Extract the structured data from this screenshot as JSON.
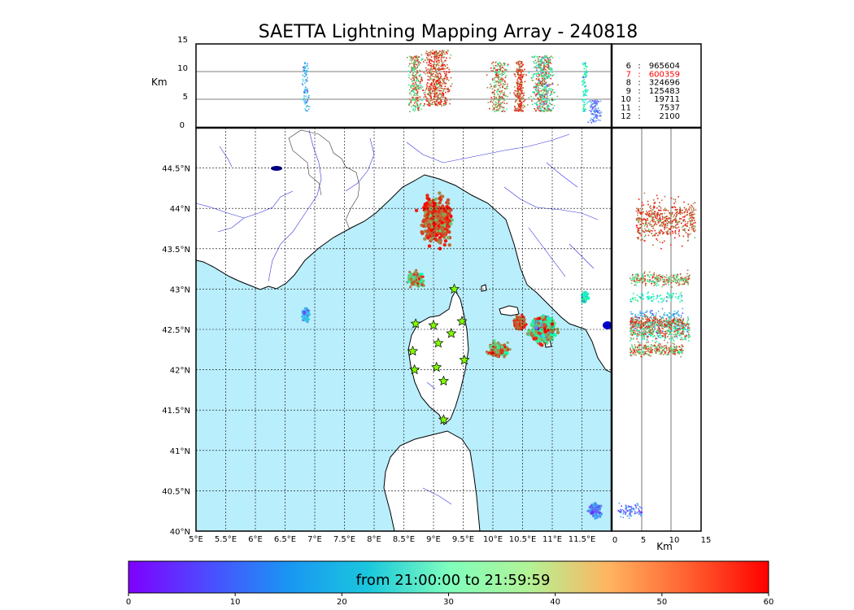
{
  "title": "SAETTA Lightning Mapping Array - 240818",
  "altitude_panel": {
    "ylabel": "Km",
    "yticks": [
      "15",
      "10",
      "5",
      "0"
    ],
    "gridlines_km": [
      5,
      10
    ]
  },
  "side_panel": {
    "xlabel": "Km",
    "xticks": [
      "0",
      "5",
      "10",
      "15"
    ]
  },
  "map": {
    "lon_range": [
      5,
      12
    ],
    "lat_range": [
      40,
      45
    ],
    "lon_ticks": [
      "5°E",
      "5.5°E",
      "6°E",
      "6.5°E",
      "7°E",
      "7.5°E",
      "8°E",
      "8.5°E",
      "9°E",
      "9.5°E",
      "10°E",
      "10.5°E",
      "11°E",
      "11.5°E"
    ],
    "lat_ticks": [
      "40°N",
      "40.5°N",
      "41°N",
      "41.5°N",
      "42°N",
      "42.5°N",
      "43°N",
      "43.5°N",
      "44°N",
      "44.5°N"
    ],
    "sea_color": "#b9eefc",
    "land_color": "#ffffff",
    "river_color": "#3333dd",
    "station_color": "#7fff00"
  },
  "station_counts": [
    {
      "stations": "6",
      "sep": ":",
      "count": "965604",
      "color": "#000000"
    },
    {
      "stations": "7",
      "sep": ":",
      "count": "600359",
      "color": "#ff0000"
    },
    {
      "stations": "8",
      "sep": ":",
      "count": "324696",
      "color": "#000000"
    },
    {
      "stations": "9",
      "sep": ":",
      "count": "125483",
      "color": "#000000"
    },
    {
      "stations": "10",
      "sep": ":",
      "count": "19711",
      "color": "#000000"
    },
    {
      "stations": "11",
      "sep": ":",
      "count": "7537",
      "color": "#000000"
    },
    {
      "stations": "12",
      "sep": ":",
      "count": "2100",
      "color": "#000000"
    }
  ],
  "colorbar": {
    "label": "from 21:00:00 to 21:59:59",
    "ticks": [
      "0",
      "10",
      "20",
      "30",
      "40",
      "50",
      "60"
    ],
    "colormap": "rainbow"
  },
  "chart_data": {
    "type": "scatter",
    "title": "SAETTA Lightning Mapping Array - 240818",
    "xlabel": "",
    "ylabel": "",
    "x_axis": "longitude (°E)",
    "y_axis": "latitude (°N)",
    "xlim": [
      5,
      12
    ],
    "ylim": [
      40,
      45
    ],
    "grid": true,
    "color_variable_minutes": [
      0,
      60
    ],
    "sources": [
      {
        "lon": 9.05,
        "lat": 43.85,
        "spread_lon": 0.22,
        "spread_lat": 0.25,
        "alt_km": [
          4,
          14
        ],
        "t_min": 40,
        "t_max": 60,
        "density": "high"
      },
      {
        "lon": 8.7,
        "lat": 43.12,
        "spread_lon": 0.12,
        "spread_lat": 0.08,
        "alt_km": [
          3,
          13
        ],
        "t_min": 20,
        "t_max": 60,
        "density": "medium"
      },
      {
        "lon": 6.85,
        "lat": 42.68,
        "spread_lon": 0.06,
        "spread_lat": 0.07,
        "alt_km": [
          3,
          12
        ],
        "t_min": 0,
        "t_max": 20,
        "density": "low"
      },
      {
        "lon": 10.1,
        "lat": 42.25,
        "spread_lon": 0.15,
        "spread_lat": 0.08,
        "alt_km": [
          3,
          12
        ],
        "t_min": 25,
        "t_max": 60,
        "density": "medium"
      },
      {
        "lon": 10.45,
        "lat": 42.58,
        "spread_lon": 0.08,
        "spread_lat": 0.07,
        "alt_km": [
          3,
          12
        ],
        "t_min": 45,
        "t_max": 60,
        "density": "medium"
      },
      {
        "lon": 10.85,
        "lat": 42.5,
        "spread_lon": 0.18,
        "spread_lat": 0.15,
        "alt_km": [
          3,
          13
        ],
        "t_min": 0,
        "t_max": 60,
        "density": "high"
      },
      {
        "lon": 11.55,
        "lat": 42.9,
        "spread_lon": 0.05,
        "spread_lat": 0.07,
        "alt_km": [
          3,
          12
        ],
        "t_min": 5,
        "t_max": 40,
        "density": "low"
      },
      {
        "lon": 11.72,
        "lat": 40.25,
        "spread_lon": 0.1,
        "spread_lat": 0.08,
        "alt_km": [
          1,
          5
        ],
        "t_min": 0,
        "t_max": 15,
        "density": "low"
      }
    ],
    "stations": [
      {
        "lon": 9.35,
        "lat": 43.0
      },
      {
        "lon": 8.7,
        "lat": 42.57
      },
      {
        "lon": 9.0,
        "lat": 42.55
      },
      {
        "lon": 9.48,
        "lat": 42.6
      },
      {
        "lon": 9.3,
        "lat": 42.45
      },
      {
        "lon": 9.08,
        "lat": 42.33
      },
      {
        "lon": 8.65,
        "lat": 42.23
      },
      {
        "lon": 9.52,
        "lat": 42.12
      },
      {
        "lon": 9.05,
        "lat": 42.03
      },
      {
        "lon": 8.68,
        "lat": 42.0
      },
      {
        "lon": 9.17,
        "lat": 41.86
      },
      {
        "lon": 9.17,
        "lat": 41.38
      }
    ]
  }
}
